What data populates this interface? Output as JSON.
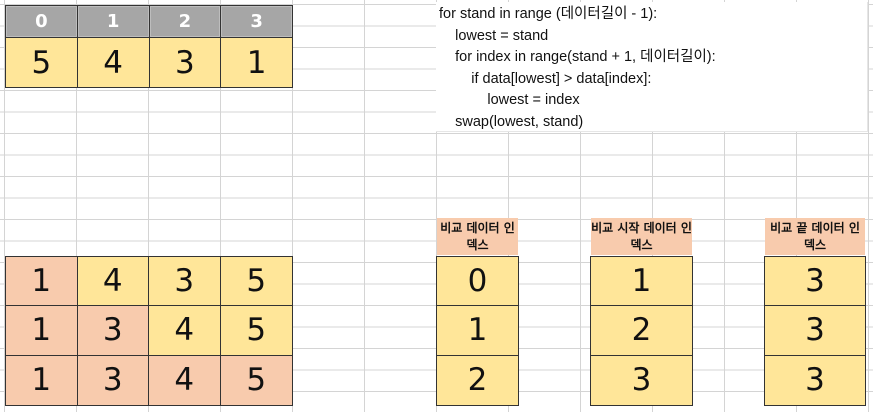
{
  "array": {
    "indices": [
      "0",
      "1",
      "2",
      "3"
    ],
    "values": [
      "5",
      "4",
      "3",
      "1"
    ]
  },
  "code": {
    "lines": [
      "for stand in range (데이터길이 - 1):",
      "    lowest = stand",
      "    for index in range(stand + 1, 데이터길이):",
      "        if data[lowest] > data[index]:",
      "            lowest = index",
      "    swap(lowest, stand)"
    ]
  },
  "passes": {
    "rows": [
      [
        "1",
        "4",
        "3",
        "5"
      ],
      [
        "1",
        "3",
        "4",
        "5"
      ],
      [
        "1",
        "3",
        "4",
        "5"
      ]
    ]
  },
  "tables": {
    "compare_index": {
      "label": "비교 데이터 인덱스",
      "values": [
        "0",
        "1",
        "2"
      ]
    },
    "compare_start": {
      "label": "비교 시작 데이터 인덱스",
      "values": [
        "1",
        "2",
        "3"
      ]
    },
    "compare_end": {
      "label": "비교 끝 데이터 인덱스",
      "values": [
        "3",
        "3",
        "3"
      ]
    }
  },
  "colors": {
    "header": "#a6a6a6",
    "cell_yellow": "#ffe699",
    "cell_peach": "#f8cbad"
  }
}
